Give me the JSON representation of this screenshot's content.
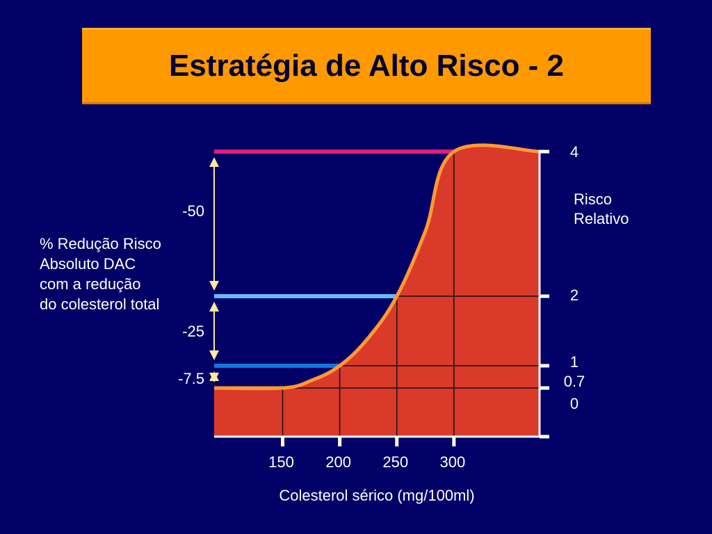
{
  "title": "Estratégia de Alto Risco - 2",
  "colors": {
    "background": "#000066",
    "title_bg": "#ff9900",
    "area_fill": "#d93a2a",
    "curve": "#ff9933",
    "line_top": "#dd2277",
    "line_mid": "#66bbff",
    "line_low": "#1177dd",
    "arrow": "#ffe8a0"
  },
  "chart_data": {
    "type": "area",
    "xlabel": "Colesterol sérico (mg/100ml)",
    "ylabel": "Risco Relativo",
    "ylabel_lines": [
      "Risco",
      "Relativo"
    ],
    "x_ticks": [
      150,
      200,
      250,
      300
    ],
    "x_tick_labels": [
      "150",
      "200",
      "250",
      "300"
    ],
    "y_ticks": [
      {
        "value": 0,
        "label": "0"
      },
      {
        "value": 0.7,
        "label": "0.7"
      },
      {
        "value": 1,
        "label": "1"
      },
      {
        "value": 2,
        "label": "2"
      },
      {
        "value": 4,
        "label": "4"
      }
    ],
    "series": [
      {
        "x": [
          90,
          150,
          175,
          200,
          225,
          250,
          275,
          300,
          375
        ],
        "y": [
          0.7,
          0.7,
          0.8,
          1.0,
          1.4,
          2.0,
          2.9,
          4.0,
          4.0
        ]
      }
    ],
    "reference_lines": [
      {
        "y": 4,
        "x_end": 300
      },
      {
        "y": 2,
        "x_end": 250
      },
      {
        "y": 1,
        "x_end": 200
      }
    ],
    "reductions": [
      {
        "label": "-50",
        "from": 4,
        "to": 2
      },
      {
        "label": "-25",
        "from": 2,
        "to": 1
      },
      {
        "label": "-7.5",
        "from": 1,
        "to": 0.7
      }
    ],
    "annotation_lines": [
      "% Redução Risco",
      "Absoluto DAC",
      "com a redução",
      "do colesterol total"
    ]
  }
}
